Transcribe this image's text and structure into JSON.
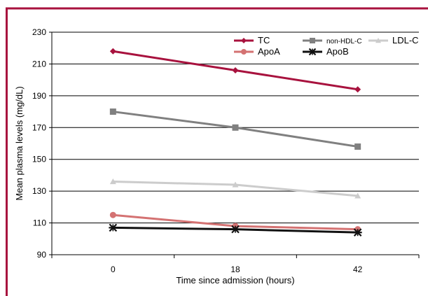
{
  "figure": {
    "frame_color": "#a8123e"
  },
  "chart_data": {
    "type": "line",
    "title": "",
    "xlabel": "Time since admission (hours)",
    "ylabel": "Mean plasma levels (mg/dL)",
    "categories": [
      "0",
      "18",
      "42"
    ],
    "ylim": [
      90,
      230
    ],
    "yticks": [
      90,
      110,
      130,
      150,
      170,
      190,
      210,
      230
    ],
    "grid": true,
    "legend_position": "top-right",
    "series": [
      {
        "name": "TC",
        "values": [
          218,
          206,
          194
        ],
        "color": "#a8123e",
        "marker": "diamond"
      },
      {
        "name": "non-HDL-C",
        "values": [
          180,
          170,
          158
        ],
        "color": "#808080",
        "marker": "square"
      },
      {
        "name": "LDL-C",
        "values": [
          136,
          134,
          127
        ],
        "color": "#cccccc",
        "marker": "triangle"
      },
      {
        "name": "ApoA",
        "values": [
          115,
          108,
          106
        ],
        "color": "#d47272",
        "marker": "circle"
      },
      {
        "name": "ApoB",
        "values": [
          107,
          106,
          104
        ],
        "color": "#111111",
        "marker": "star"
      }
    ]
  }
}
